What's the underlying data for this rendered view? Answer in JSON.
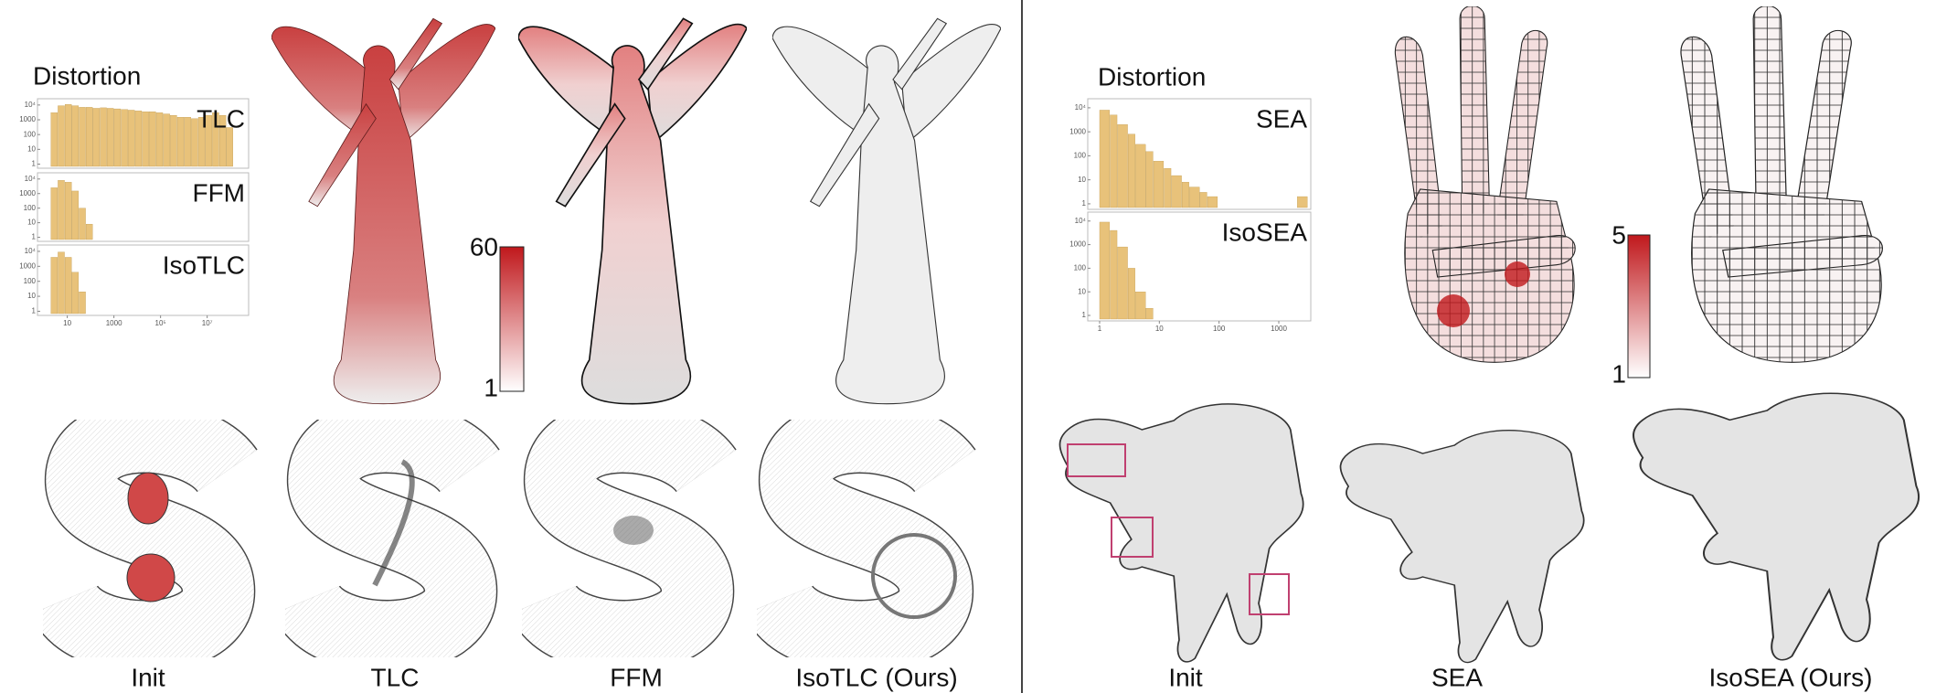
{
  "left_figure": {
    "histogram": {
      "title": "Distortion",
      "log_scale": true,
      "color": "#e8c27a",
      "xlim": [
        1.3,
        500000000
      ],
      "xticks": [
        10,
        1000,
        {
          "value": 100000,
          "label": "10⁵"
        },
        {
          "value": 10000000,
          "label": "10⁷"
        }
      ],
      "ylim": [
        0.7,
        20000
      ],
      "yticks": [
        {
          "value": 10000,
          "label": "10⁴"
        },
        1000,
        100,
        10,
        1
      ],
      "panels": [
        {
          "name": "TLC",
          "bins": [
            2,
            4,
            8,
            16,
            32,
            64,
            128,
            256,
            512,
            1024,
            2048,
            4096,
            8192,
            16384,
            32768,
            65536,
            131072,
            262144,
            524288,
            1048576,
            2097152,
            4194304,
            8388608,
            16777216,
            33554432,
            67108864,
            134217728
          ],
          "counts": [
            3000,
            9000,
            11000,
            9000,
            7000,
            7000,
            6000,
            6500,
            6000,
            5500,
            5000,
            4500,
            4000,
            3500,
            3500,
            3000,
            2500,
            2000,
            1500,
            1500,
            1200,
            1500,
            2000,
            3000,
            2000,
            300
          ]
        },
        {
          "name": "FFM",
          "bins": [
            2,
            4,
            8,
            16,
            32,
            64,
            128
          ],
          "counts": [
            2500,
            8000,
            6000,
            1500,
            100,
            8
          ]
        },
        {
          "name": "IsoTLC",
          "bins": [
            2,
            4,
            8,
            16,
            32,
            64
          ],
          "counts": [
            4000,
            9000,
            4000,
            400,
            20
          ]
        }
      ]
    },
    "colorbar": {
      "clim": [
        1,
        60
      ],
      "ticks": [
        60,
        1
      ],
      "color": "#c0181c"
    },
    "labels": [
      "Init",
      "TLC",
      "FFM",
      "IsoTLC (Ours)"
    ]
  },
  "right_figure": {
    "histogram": {
      "title": "Distortion",
      "log_scale": true,
      "color": "#e8c27a",
      "xlim": [
        0.9,
        3200
      ],
      "xticks": [
        1,
        10,
        100,
        1000
      ],
      "ylim": [
        0.7,
        20000
      ],
      "yticks": [
        {
          "value": 10000,
          "label": "10⁴"
        },
        1000,
        100,
        10,
        1
      ],
      "panels": [
        {
          "name": "SEA",
          "bins": [
            1,
            1.5,
            2,
            3,
            4,
            6,
            8,
            12,
            16,
            24,
            32,
            48,
            64,
            96,
            128,
            192,
            256,
            384,
            512,
            768,
            1024,
            1536,
            2048,
            3072
          ],
          "counts": [
            8000,
            5000,
            2000,
            800,
            300,
            150,
            60,
            30,
            15,
            8,
            5,
            3,
            2,
            0,
            0,
            0,
            0,
            0,
            0,
            0,
            0,
            0,
            2
          ]
        },
        {
          "name": "IsoSEA",
          "bins": [
            1,
            1.5,
            2,
            3,
            4,
            6,
            8
          ],
          "counts": [
            9000,
            4000,
            800,
            100,
            10,
            2
          ]
        }
      ]
    },
    "colorbar": {
      "clim": [
        1,
        5
      ],
      "ticks": [
        5,
        1
      ],
      "color": "#c0181c"
    },
    "labels": [
      "Init",
      "SEA",
      "IsoSEA (Ours)"
    ]
  }
}
